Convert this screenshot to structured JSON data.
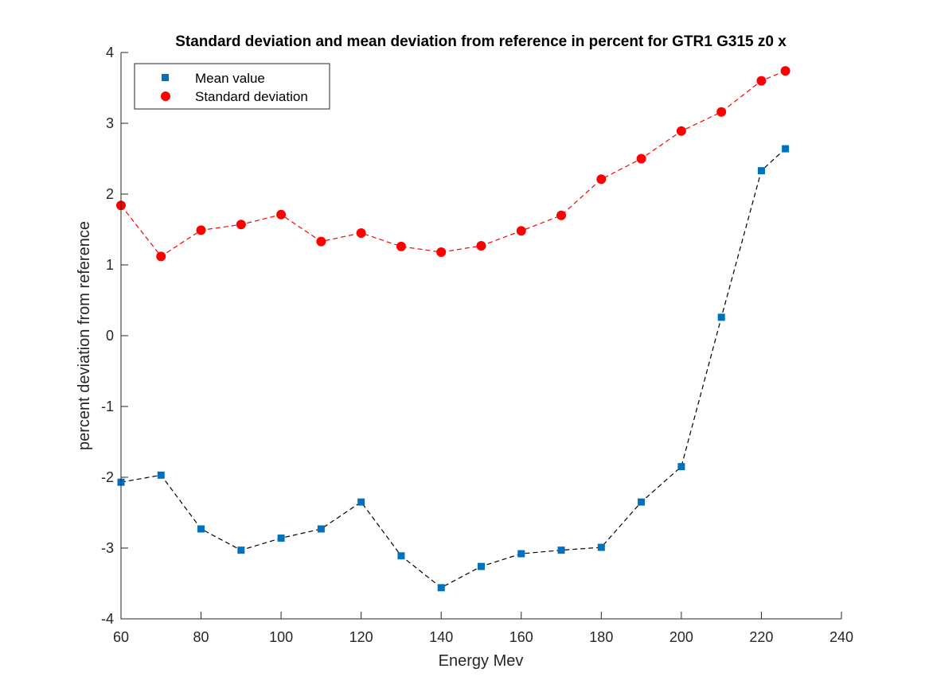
{
  "chart_data": {
    "type": "line",
    "title": "Standard deviation and mean deviation from reference in percent for GTR1 G315 z0 x",
    "xlabel": "Energy Mev",
    "ylabel": "percent deviation from reference",
    "xlim": [
      60,
      240
    ],
    "ylim": [
      -4,
      4
    ],
    "xticks": [
      60,
      80,
      100,
      120,
      140,
      160,
      180,
      200,
      220,
      240
    ],
    "yticks": [
      -4,
      -3,
      -2,
      -1,
      0,
      1,
      2,
      3,
      4
    ],
    "xtick_labels": [
      "60",
      "80",
      "100",
      "120",
      "140",
      "160",
      "180",
      "200",
      "220",
      "240"
    ],
    "ytick_labels": [
      "-4",
      "-3",
      "-2",
      "-1",
      "0",
      "1",
      "2",
      "3",
      "4"
    ],
    "grid": false,
    "legend_position": "top-left",
    "series": [
      {
        "name": "Mean value",
        "marker": "square",
        "marker_color": "#0072BD",
        "line_color": "#000000",
        "line_style": "dashed",
        "x": [
          60,
          70,
          80,
          90,
          100,
          110,
          120,
          130,
          140,
          150,
          160,
          170,
          180,
          190,
          200,
          210,
          220,
          226
        ],
        "y": [
          -2.07,
          -1.97,
          -2.73,
          -3.03,
          -2.86,
          -2.73,
          -2.35,
          -3.11,
          -3.56,
          -3.26,
          -3.08,
          -3.03,
          -2.99,
          -2.35,
          -1.85,
          0.26,
          2.33,
          2.64
        ]
      },
      {
        "name": "Standard deviation",
        "marker": "circle",
        "marker_color": "#FF0000",
        "line_color": "#FF0000",
        "line_style": "dashed",
        "x": [
          60,
          70,
          80,
          90,
          100,
          110,
          120,
          130,
          140,
          150,
          160,
          170,
          180,
          190,
          200,
          210,
          220,
          226
        ],
        "y": [
          1.84,
          1.12,
          1.49,
          1.57,
          1.71,
          1.33,
          1.45,
          1.26,
          1.18,
          1.27,
          1.48,
          1.7,
          2.21,
          2.5,
          2.89,
          3.16,
          3.6,
          3.74
        ]
      }
    ]
  }
}
